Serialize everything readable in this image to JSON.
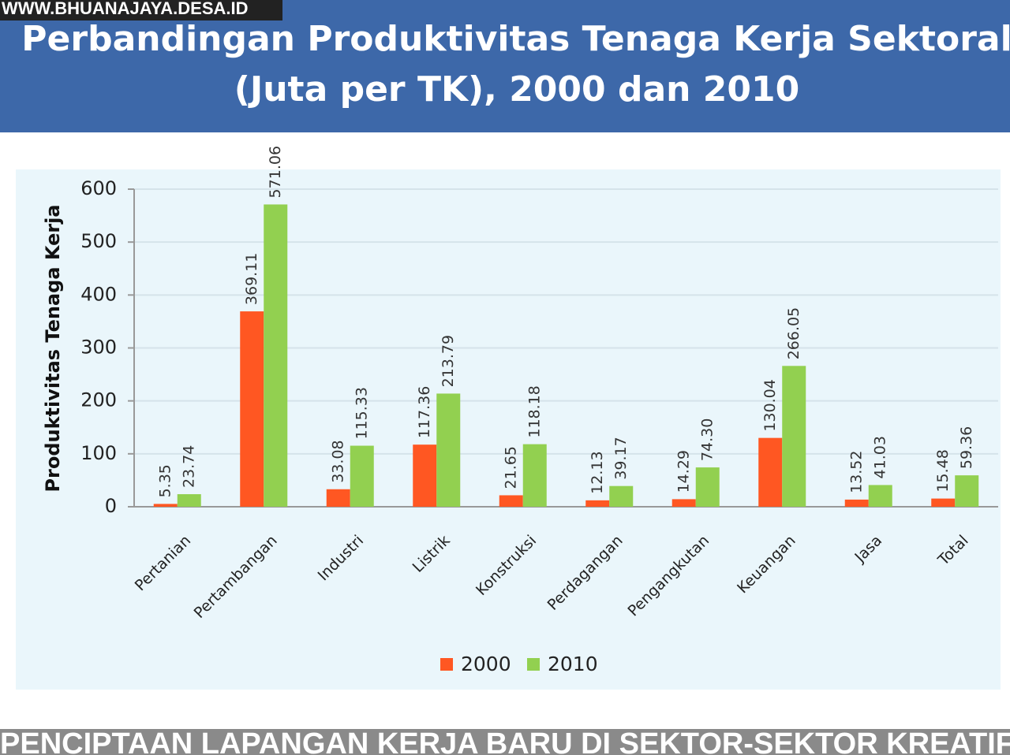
{
  "watermark": "WWW.BHUANAJAYA.DESA.ID",
  "caption": "PENCIPTAAN LAPANGAN KERJA BARU DI SEKTOR-SEKTOR KREATIF",
  "chart_data": {
    "type": "bar",
    "title": [
      "Perbandingan Produktivitas Tenaga Kerja Sektoral",
      "(Juta per TK), 2000 dan 2010"
    ],
    "y_label": "Produktivitas Tenaga Kerja",
    "categories": [
      "Pertanian",
      "Pertambangan",
      "Industri",
      "Listrik",
      "Konstruksi",
      "Perdagangan",
      "Pengangkutan",
      "Keuangan",
      "Jasa",
      "Total"
    ],
    "series": [
      {
        "name": "2000",
        "color": "#ff5722",
        "values": [
          5.35,
          369.11,
          33.08,
          117.36,
          21.65,
          12.13,
          14.29,
          130.04,
          13.52,
          15.48
        ],
        "value_labels": [
          "5.35",
          "369.11",
          "33.08",
          "117.36",
          "21.65",
          "12.13",
          "14.29",
          "130.04",
          "13.52",
          "15.48"
        ]
      },
      {
        "name": "2010",
        "color": "#92d050",
        "values": [
          23.74,
          571.06,
          115.33,
          213.79,
          118.18,
          39.17,
          74.3,
          266.05,
          41.03,
          59.36
        ],
        "value_labels": [
          "23.74",
          "571.06",
          "115.33",
          "213.79",
          "118.18",
          "39.17",
          "74.30",
          "266.05",
          "41.03",
          "59.36"
        ]
      }
    ],
    "ylim": [
      0,
      600
    ],
    "yticks": [
      0,
      100,
      200,
      300,
      400,
      500,
      600
    ],
    "grid": true,
    "legend": "bottom"
  }
}
